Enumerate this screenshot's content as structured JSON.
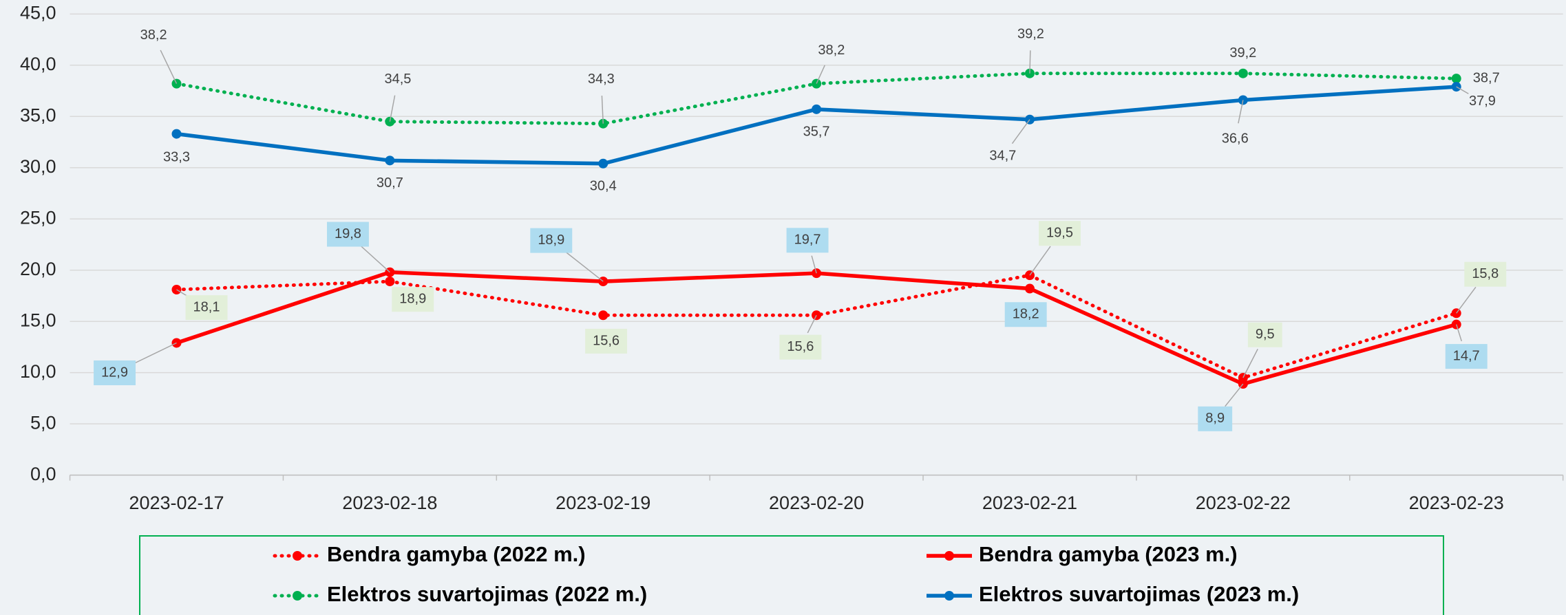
{
  "chart_data": {
    "type": "line",
    "categories": [
      "2023-02-17",
      "2023-02-18",
      "2023-02-19",
      "2023-02-20",
      "2023-02-21",
      "2023-02-22",
      "2023-02-23"
    ],
    "series": [
      {
        "name": "Bendra gamyba (2022 m.)",
        "color": "#ff0000",
        "style": "dotted",
        "label_box": "#e2efd9",
        "values": [
          18.1,
          18.9,
          15.6,
          15.6,
          19.5,
          9.5,
          15.8
        ],
        "value_labels": [
          "18,1",
          "18,9",
          "15,6",
          "15,6",
          "19,5",
          "9,5",
          "15,8"
        ]
      },
      {
        "name": "Bendra gamyba (2023 m.)",
        "color": "#ff0000",
        "style": "solid",
        "label_box": "#aedcf0",
        "values": [
          12.9,
          19.8,
          18.9,
          19.7,
          18.2,
          8.9,
          14.7
        ],
        "value_labels": [
          "12,9",
          "19,8",
          "18,9",
          "19,7",
          "18,2",
          "8,9",
          "14,7"
        ]
      },
      {
        "name": "Elektros suvartojimas (2022 m.)",
        "color": "#00b050",
        "style": "dotted",
        "values": [
          38.2,
          34.5,
          34.3,
          38.2,
          39.2,
          39.2,
          38.7
        ],
        "value_labels": [
          "38,2",
          "34,5",
          "34,3",
          "38,2",
          "39,2",
          "39,2",
          "38,7"
        ]
      },
      {
        "name": "Elektros suvartojimas (2023 m.)",
        "color": "#0070c0",
        "style": "solid",
        "values": [
          33.3,
          30.7,
          30.4,
          35.7,
          34.7,
          36.6,
          37.9
        ],
        "value_labels": [
          "33,3",
          "30,7",
          "30,4",
          "35,7",
          "34,7",
          "36,6",
          "37,9"
        ]
      }
    ],
    "ylim": [
      0,
      45
    ],
    "yticks": [
      {
        "value": 0,
        "label": "0,0"
      },
      {
        "value": 5,
        "label": "5,0"
      },
      {
        "value": 10,
        "label": "10,0"
      },
      {
        "value": 15,
        "label": "15,0"
      },
      {
        "value": 20,
        "label": "20,0"
      },
      {
        "value": 25,
        "label": "25,0"
      },
      {
        "value": 30,
        "label": "30,0"
      },
      {
        "value": 35,
        "label": "35,0"
      },
      {
        "value": 40,
        "label": "40,0"
      },
      {
        "value": 45,
        "label": "45,0"
      }
    ],
    "grid": true,
    "legend": "bottom"
  }
}
